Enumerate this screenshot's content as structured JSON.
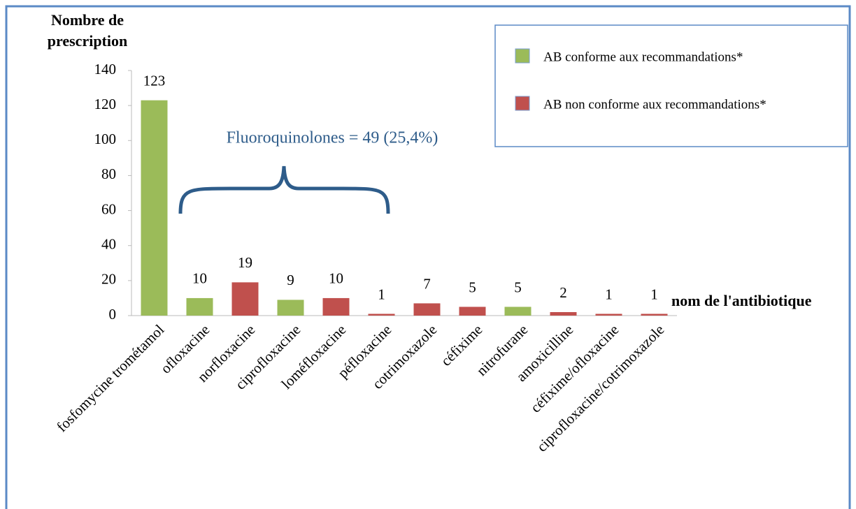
{
  "chart_data": {
    "type": "bar",
    "y_axis_label": "Nombre de prescription",
    "x_axis_label": "nom de l'antibiotique",
    "annotation": "Fluoroquinolones = 49 (25,4%)",
    "categories": [
      "fosfomycine trométamol",
      "ofloxacine",
      "norfloxacine",
      "ciprofloxacine",
      "loméfloxacine",
      "péfloxacine",
      "cotrimoxazole",
      "céfixime",
      "nitrofurane",
      "amoxicilline",
      "céfixime/ofloxacine",
      "ciprofloxacine/cotrimoxazole"
    ],
    "series": [
      {
        "name": "AB conforme aux recommandations*",
        "color": "#9bbb59",
        "values": [
          123,
          10,
          null,
          9,
          null,
          null,
          null,
          null,
          5,
          null,
          null,
          null
        ]
      },
      {
        "name": "AB non conforme aux recommandations*",
        "color": "#c0504d",
        "values": [
          null,
          null,
          19,
          null,
          10,
          1,
          7,
          5,
          null,
          2,
          1,
          1
        ]
      }
    ],
    "ylim": [
      0,
      140
    ],
    "yticks": [
      0,
      20,
      40,
      60,
      80,
      100,
      120,
      140
    ],
    "grid": false,
    "legend": "upper right"
  }
}
